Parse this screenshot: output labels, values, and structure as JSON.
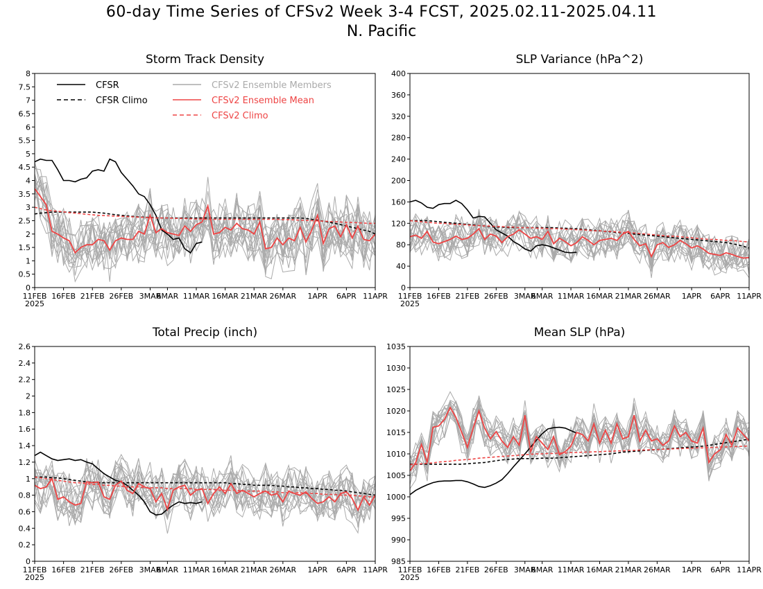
{
  "title": "60-day Time Series of CFSv2 Week 3-4 FCST, 2025.02.11-2025.04.11",
  "subtitle": "N. Pacific",
  "colors": {
    "cfsr": "#000000",
    "ensemble_members": "#aaaaaa",
    "ensemble_mean": "#ee4444",
    "cfsv2_climo": "#ee4444"
  },
  "legend": {
    "cfsr": "CFSR",
    "cfsr_climo": "CFSR Climo",
    "members": "CFSv2 Ensemble Members",
    "mean": "CFSv2 Ensemble Mean",
    "cfsv2_climo": "CFSv2 Climo"
  },
  "x_ticks": [
    "11FEB",
    "16FEB",
    "21FEB",
    "26FEB",
    "3MAR",
    "6MAR",
    "11MAR",
    "16MAR",
    "21MAR",
    "26MAR",
    "1APR",
    "6APR",
    "11APR"
  ],
  "x_year": "2025",
  "chart_data": [
    {
      "type": "line",
      "title": "Storm Track Density",
      "ylim": [
        0,
        8
      ],
      "yticks": [
        "0",
        "0.5",
        "1",
        "1.5",
        "2",
        "2.5",
        "3",
        "3.5",
        "4",
        "4.5",
        "5",
        "5.5",
        "6",
        "6.5",
        "7",
        "7.5",
        "8"
      ],
      "series": [
        {
          "name": "CFSR",
          "values": [
            4.7,
            4.8,
            4.75,
            4.75,
            4.4,
            4.0,
            4.0,
            3.95,
            4.05,
            4.1,
            4.35,
            4.4,
            4.35,
            4.8,
            4.7,
            4.3,
            4.05,
            3.8,
            3.5,
            3.4,
            3.1,
            2.7,
            2.15,
            2.0,
            1.8,
            1.85,
            1.45,
            1.3,
            1.65,
            1.7
          ]
        },
        {
          "name": "CFSR Climo",
          "values": [
            2.75,
            2.78,
            2.8,
            2.82,
            2.82,
            2.82,
            2.82,
            2.82,
            2.82,
            2.82,
            2.82,
            2.8,
            2.78,
            2.75,
            2.72,
            2.7,
            2.68,
            2.66,
            2.64,
            2.63,
            2.62,
            2.61,
            2.6,
            2.6,
            2.6,
            2.6,
            2.6,
            2.6,
            2.6,
            2.6,
            2.6,
            2.6,
            2.6,
            2.6,
            2.6,
            2.6,
            2.6,
            2.6,
            2.6,
            2.6,
            2.6,
            2.6,
            2.6,
            2.6,
            2.6,
            2.6,
            2.6,
            2.58,
            2.55,
            2.52,
            2.48,
            2.44,
            2.4,
            2.35,
            2.3,
            2.25,
            2.2,
            2.15,
            2.1,
            2.0
          ]
        },
        {
          "name": "CFSv2 Ensemble Mean",
          "values": [
            3.7,
            3.4,
            3.1,
            2.1,
            2.0,
            1.85,
            1.75,
            1.3,
            1.5,
            1.6,
            1.6,
            1.8,
            1.75,
            1.4,
            1.75,
            1.85,
            1.8,
            1.8,
            2.1,
            2.0,
            2.7,
            2.05,
            2.2,
            2.05,
            2.0,
            1.95,
            2.3,
            2.1,
            2.35,
            2.45,
            3.05,
            2.0,
            2.05,
            2.25,
            2.15,
            2.4,
            2.2,
            2.15,
            2.0,
            2.45,
            1.45,
            1.5,
            1.85,
            1.6,
            1.85,
            1.75,
            2.25,
            1.7,
            2.15,
            2.7,
            1.65,
            2.2,
            2.3,
            1.9,
            2.35,
            1.85,
            2.3,
            1.8,
            1.75,
            2.0
          ]
        },
        {
          "name": "CFSv2 Climo",
          "values": [
            3.0,
            2.95,
            2.9,
            2.87,
            2.85,
            2.83,
            2.8,
            2.78,
            2.76,
            2.74,
            2.72,
            2.7,
            2.69,
            2.68,
            2.67,
            2.66,
            2.65,
            2.64,
            2.63,
            2.62,
            2.61,
            2.6,
            2.6,
            2.6,
            2.59,
            2.58,
            2.58,
            2.57,
            2.56,
            2.56,
            2.55,
            2.55,
            2.55,
            2.55,
            2.55,
            2.55,
            2.55,
            2.55,
            2.55,
            2.55,
            2.55,
            2.55,
            2.55,
            2.54,
            2.54,
            2.53,
            2.52,
            2.51,
            2.5,
            2.49,
            2.48,
            2.47,
            2.46,
            2.45,
            2.44,
            2.43,
            2.42,
            2.41,
            2.4,
            2.4
          ]
        }
      ],
      "members": {
        "count": 16,
        "mean_series": "CFSv2 Ensemble Mean",
        "spread": 1.0,
        "clip": [
          0,
          8
        ]
      }
    },
    {
      "type": "line",
      "title": "SLP Variance (hPa^2)",
      "ylim": [
        0,
        400
      ],
      "yticks": [
        "0",
        "40",
        "80",
        "120",
        "160",
        "200",
        "240",
        "280",
        "320",
        "360",
        "400"
      ],
      "series": [
        {
          "name": "CFSR",
          "values": [
            160,
            163,
            158,
            150,
            148,
            155,
            157,
            157,
            163,
            157,
            145,
            130,
            133,
            132,
            120,
            108,
            102,
            96,
            86,
            80,
            72,
            68,
            78,
            80,
            78,
            74,
            70,
            66,
            65,
            66
          ]
        },
        {
          "name": "CFSR Climo",
          "values": [
            125,
            125,
            125,
            125,
            124,
            123,
            122,
            121,
            120,
            119,
            118,
            117,
            116,
            115,
            114,
            113,
            113,
            112,
            112,
            112,
            112,
            112,
            112,
            112,
            112,
            112,
            111,
            111,
            110,
            110,
            109,
            108,
            107,
            106,
            105,
            104,
            103,
            102,
            101,
            100,
            99,
            98,
            97,
            96,
            95,
            94,
            93,
            92,
            91,
            90,
            89,
            88,
            87,
            86,
            85,
            84,
            82,
            80,
            77,
            74
          ]
        },
        {
          "name": "CFSv2 Ensemble Mean",
          "values": [
            95,
            98,
            92,
            105,
            85,
            82,
            86,
            90,
            96,
            90,
            92,
            100,
            110,
            90,
            100,
            96,
            84,
            95,
            100,
            108,
            100,
            92,
            95,
            90,
            105,
            82,
            92,
            86,
            78,
            84,
            95,
            88,
            80,
            88,
            90,
            92,
            88,
            100,
            105,
            90,
            78,
            82,
            58,
            80,
            84,
            75,
            80,
            88,
            82,
            74,
            78,
            72,
            64,
            62,
            60,
            65,
            62,
            58,
            55,
            56
          ]
        },
        {
          "name": "CFSv2 Climo",
          "values": [
            125,
            124,
            123,
            122,
            121,
            120,
            120,
            119,
            118,
            118,
            117,
            116,
            116,
            115,
            115,
            114,
            114,
            113,
            113,
            112,
            112,
            112,
            111,
            111,
            110,
            110,
            110,
            109,
            109,
            108,
            108,
            107,
            106,
            106,
            105,
            105,
            104,
            103,
            103,
            102,
            101,
            100,
            99,
            98,
            97,
            96,
            96,
            95,
            94,
            93,
            92,
            91,
            90,
            90,
            89,
            88,
            88,
            87,
            86,
            85
          ]
        }
      ],
      "members": {
        "count": 16,
        "mean_series": "CFSv2 Ensemble Mean",
        "spread": 34,
        "clip": [
          0,
          400
        ]
      }
    },
    {
      "type": "line",
      "title": "Total Precip (inch)",
      "ylim": [
        0,
        2.6
      ],
      "yticks": [
        "0",
        "0.2",
        "0.4",
        "0.6",
        "0.8",
        "1",
        "1.2",
        "1.4",
        "1.6",
        "1.8",
        "2",
        "2.2",
        "2.4",
        "2.6"
      ],
      "series": [
        {
          "name": "CFSR",
          "values": [
            1.28,
            1.32,
            1.28,
            1.24,
            1.22,
            1.23,
            1.24,
            1.22,
            1.23,
            1.2,
            1.18,
            1.12,
            1.06,
            1.02,
            0.98,
            0.96,
            0.92,
            0.86,
            0.8,
            0.72,
            0.6,
            0.56,
            0.57,
            0.63,
            0.68,
            0.72,
            0.7,
            0.71,
            0.7,
            0.72
          ]
        },
        {
          "name": "CFSR Climo",
          "values": [
            1.02,
            1.02,
            1.02,
            1.01,
            1.01,
            1.0,
            0.99,
            0.98,
            0.97,
            0.96,
            0.96,
            0.95,
            0.95,
            0.95,
            0.95,
            0.95,
            0.95,
            0.95,
            0.95,
            0.95,
            0.95,
            0.95,
            0.95,
            0.95,
            0.95,
            0.95,
            0.95,
            0.95,
            0.95,
            0.95,
            0.95,
            0.95,
            0.95,
            0.95,
            0.94,
            0.94,
            0.93,
            0.93,
            0.92,
            0.92,
            0.92,
            0.92,
            0.91,
            0.91,
            0.9,
            0.9,
            0.89,
            0.89,
            0.88,
            0.88,
            0.87,
            0.87,
            0.86,
            0.86,
            0.85,
            0.84,
            0.83,
            0.82,
            0.81,
            0.8
          ]
        },
        {
          "name": "CFSv2 Ensemble Mean",
          "values": [
            0.92,
            0.88,
            0.9,
            1.0,
            0.75,
            0.78,
            0.72,
            0.68,
            0.7,
            0.96,
            0.95,
            0.96,
            0.78,
            0.75,
            0.92,
            0.97,
            0.86,
            0.82,
            0.94,
            0.9,
            0.88,
            0.72,
            0.82,
            0.63,
            0.86,
            0.9,
            0.92,
            0.8,
            0.86,
            0.88,
            0.7,
            0.82,
            0.9,
            0.82,
            0.94,
            0.82,
            0.86,
            0.82,
            0.78,
            0.82,
            0.85,
            0.8,
            0.82,
            0.72,
            0.85,
            0.82,
            0.8,
            0.84,
            0.76,
            0.7,
            0.72,
            0.78,
            0.72,
            0.82,
            0.84,
            0.76,
            0.62,
            0.78,
            0.68,
            0.8
          ]
        },
        {
          "name": "CFSv2 Climo",
          "values": [
            1.02,
            1.01,
            1.0,
            0.99,
            0.98,
            0.97,
            0.96,
            0.95,
            0.95,
            0.94,
            0.93,
            0.93,
            0.92,
            0.92,
            0.91,
            0.91,
            0.9,
            0.9,
            0.9,
            0.89,
            0.89,
            0.89,
            0.89,
            0.88,
            0.88,
            0.88,
            0.88,
            0.88,
            0.87,
            0.87,
            0.87,
            0.87,
            0.86,
            0.86,
            0.86,
            0.86,
            0.85,
            0.85,
            0.85,
            0.85,
            0.84,
            0.84,
            0.84,
            0.83,
            0.83,
            0.83,
            0.83,
            0.82,
            0.82,
            0.82,
            0.81,
            0.81,
            0.81,
            0.8,
            0.8,
            0.8,
            0.79,
            0.79,
            0.78,
            0.78
          ]
        }
      ],
      "members": {
        "count": 16,
        "mean_series": "CFSv2 Ensemble Mean",
        "spread": 0.27,
        "clip": [
          0,
          2.6
        ]
      }
    },
    {
      "type": "line",
      "title": "Mean SLP (hPa)",
      "ylim": [
        985,
        1035
      ],
      "yticks": [
        "985",
        "990",
        "995",
        "1000",
        "1005",
        "1010",
        "1015",
        "1020",
        "1025",
        "1030",
        "1035"
      ],
      "series": [
        {
          "name": "CFSR",
          "values": [
            1000.5,
            1001.5,
            1002.2,
            1002.8,
            1003.3,
            1003.6,
            1003.7,
            1003.7,
            1003.8,
            1003.8,
            1003.5,
            1003.0,
            1002.4,
            1002.2,
            1002.6,
            1003.2,
            1004.0,
            1005.4,
            1007.0,
            1008.5,
            1010.0,
            1011.6,
            1013.2,
            1014.7,
            1015.8,
            1016.1,
            1016.2,
            1016.0,
            1015.4,
            1014.8
          ]
        },
        {
          "name": "CFSR Climo",
          "values": [
            1007.6,
            1007.6,
            1007.6,
            1007.6,
            1007.6,
            1007.6,
            1007.6,
            1007.6,
            1007.6,
            1007.6,
            1007.7,
            1007.8,
            1007.9,
            1008.0,
            1008.2,
            1008.4,
            1008.6,
            1008.7,
            1008.8,
            1008.9,
            1008.9,
            1008.9,
            1008.9,
            1009.0,
            1009.0,
            1009.0,
            1009.1,
            1009.2,
            1009.3,
            1009.4,
            1009.5,
            1009.6,
            1009.7,
            1009.8,
            1009.9,
            1010.0,
            1010.2,
            1010.4,
            1010.5,
            1010.6,
            1010.7,
            1010.8,
            1010.9,
            1011.0,
            1011.1,
            1011.2,
            1011.3,
            1011.4,
            1011.5,
            1011.6,
            1011.7,
            1011.8,
            1012.0,
            1012.2,
            1012.4,
            1012.6,
            1012.8,
            1013.0,
            1013.2,
            1013.4
          ]
        },
        {
          "name": "CFSv2 Ensemble Mean",
          "values": [
            1006.0,
            1008.0,
            1012.2,
            1008.0,
            1016.2,
            1016.5,
            1018.0,
            1020.8,
            1018.5,
            1015.0,
            1011.5,
            1016.0,
            1020.0,
            1016.0,
            1013.5,
            1015.2,
            1013.0,
            1011.5,
            1014.0,
            1012.0,
            1019.0,
            1010.5,
            1014.0,
            1012.5,
            1011.0,
            1014.0,
            1009.8,
            1010.5,
            1011.8,
            1015.0,
            1014.5,
            1013.0,
            1017.0,
            1012.5,
            1015.5,
            1012.5,
            1017.0,
            1013.5,
            1014.0,
            1019.0,
            1013.0,
            1015.5,
            1013.0,
            1013.5,
            1012.0,
            1013.0,
            1016.5,
            1014.0,
            1015.0,
            1013.0,
            1012.5,
            1016.0,
            1008.0,
            1010.0,
            1011.0,
            1014.5,
            1012.0,
            1016.0,
            1014.5,
            1013.0
          ]
        },
        {
          "name": "CFSv2 Climo",
          "values": [
            1007.5,
            1007.6,
            1007.7,
            1007.8,
            1007.9,
            1008.1,
            1008.2,
            1008.3,
            1008.5,
            1008.6,
            1008.7,
            1008.8,
            1009.0,
            1009.1,
            1009.2,
            1009.3,
            1009.4,
            1009.5,
            1009.6,
            1009.7,
            1009.8,
            1009.9,
            1010.0,
            1010.0,
            1010.1,
            1010.1,
            1010.2,
            1010.2,
            1010.3,
            1010.3,
            1010.4,
            1010.4,
            1010.5,
            1010.5,
            1010.6,
            1010.6,
            1010.7,
            1010.7,
            1010.8,
            1010.8,
            1010.9,
            1010.9,
            1011.0,
            1011.0,
            1011.1,
            1011.1,
            1011.2,
            1011.2,
            1011.3,
            1011.3,
            1011.4,
            1011.4,
            1011.5,
            1011.5,
            1011.6,
            1011.6,
            1011.7,
            1011.7,
            1011.8,
            1011.8
          ]
        }
      ],
      "members": {
        "count": 16,
        "mean_series": "CFSv2 Ensemble Mean",
        "spread": 3.8,
        "clip": [
          985,
          1035
        ]
      }
    }
  ]
}
